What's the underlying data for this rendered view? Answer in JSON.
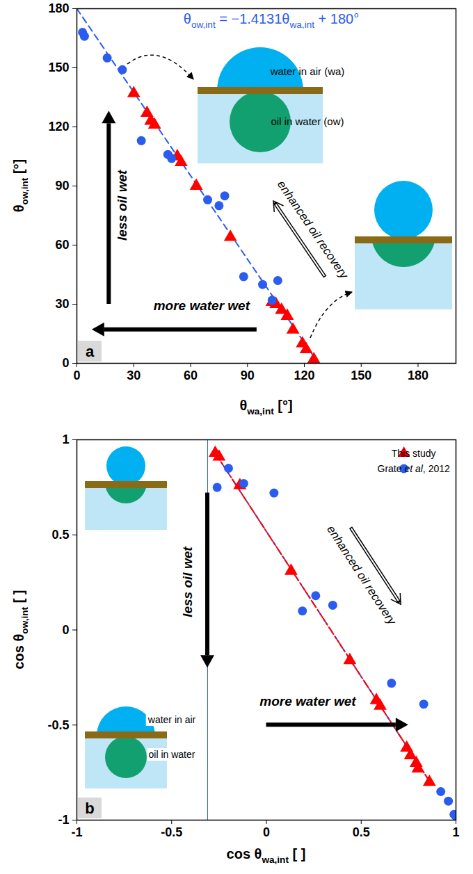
{
  "chart_data": [
    {
      "type": "scatter",
      "panel_label": "a",
      "x_label": "θwa,int [°]",
      "y_label": "θow,int [°]",
      "xlim": [
        0,
        200
      ],
      "ylim": [
        0,
        180
      ],
      "xticks": [
        0,
        30,
        60,
        90,
        120,
        150,
        180
      ],
      "yticks": [
        0,
        30,
        60,
        90,
        120,
        150,
        180
      ],
      "series": [
        {
          "type": "line",
          "name": "θow,int = −1.4131θwa,int + 180°",
          "color": "#2a5cf0",
          "line_style": "dashed",
          "x": [
            0,
            127.4
          ],
          "values": [
            180,
            0
          ]
        },
        {
          "color": "#ff0000",
          "marker": "triangle",
          "x": [
            30,
            37,
            39,
            41,
            53,
            55,
            63,
            81,
            103,
            105,
            108,
            111,
            114,
            119,
            121,
            125
          ],
          "values": [
            137,
            127,
            123,
            121,
            105,
            102,
            90,
            64,
            31,
            30,
            27,
            24,
            17,
            10,
            7,
            2
          ]
        },
        {
          "color": "#2a5cf0",
          "marker": "circle",
          "x": [
            3,
            4,
            16,
            24,
            34,
            48,
            50,
            69,
            75,
            78,
            88,
            98,
            103,
            106
          ],
          "values": [
            168,
            166,
            155,
            149,
            113,
            106,
            104,
            83,
            80,
            85,
            44,
            40,
            32,
            42
          ]
        }
      ],
      "annotations": [
        "less oil wet",
        "more water wet",
        "enhanced oil recovery"
      ],
      "inset_labels": [
        "water in air (wa)",
        "oil in water (ow)"
      ]
    },
    {
      "type": "scatter",
      "panel_label": "b",
      "x_label": "cos θwa,int [ ]",
      "y_label": "cos θow,int [ ]",
      "xlim": [
        -1,
        1
      ],
      "ylim": [
        -1,
        1
      ],
      "xticks": [
        -1,
        -0.5,
        0,
        0.5,
        1
      ],
      "yticks": [
        -1,
        -0.5,
        0,
        0.5,
        1
      ],
      "legend": "top-right",
      "series": [
        {
          "type": "line",
          "color": "#2a5cf0",
          "line_style": "dashed",
          "x": [
            -0.27,
            0.87
          ],
          "values": [
            0.93,
            -0.81
          ]
        },
        {
          "type": "line",
          "color": "#ff0000",
          "line_style": "dashdot",
          "x": [
            -0.27,
            0.87
          ],
          "values": [
            0.93,
            -0.81
          ]
        },
        {
          "type": "line",
          "color": "#2a5cf0",
          "line_style": "solid",
          "x": [
            -0.31,
            -0.31
          ],
          "values": [
            -1,
            1
          ]
        },
        {
          "name": "This study",
          "color": "#ff0000",
          "marker": "triangle",
          "x": [
            -0.27,
            -0.25,
            -0.14,
            0.13,
            0.44,
            0.58,
            0.6,
            0.74,
            0.76,
            0.79,
            0.8,
            0.86
          ],
          "values": [
            0.93,
            0.91,
            0.76,
            0.31,
            -0.16,
            -0.37,
            -0.4,
            -0.62,
            -0.66,
            -0.7,
            -0.73,
            -0.8
          ]
        },
        {
          "name": "Grate et al, 2012",
          "color": "#2a5cf0",
          "marker": "circle",
          "x": [
            -0.26,
            -0.2,
            -0.12,
            0.04,
            0.19,
            0.26,
            0.35,
            0.66,
            0.83,
            0.92,
            0.96,
            0.99,
            1.0
          ],
          "values": [
            0.75,
            0.85,
            0.77,
            0.72,
            0.1,
            0.18,
            0.13,
            -0.28,
            -0.39,
            -0.85,
            -0.9,
            -0.97,
            -0.98
          ]
        }
      ],
      "annotations": [
        "less oil wet",
        "more water wet",
        "enhanced oil recovery"
      ],
      "inset_labels": [
        "water in air",
        "oil in water"
      ]
    }
  ]
}
